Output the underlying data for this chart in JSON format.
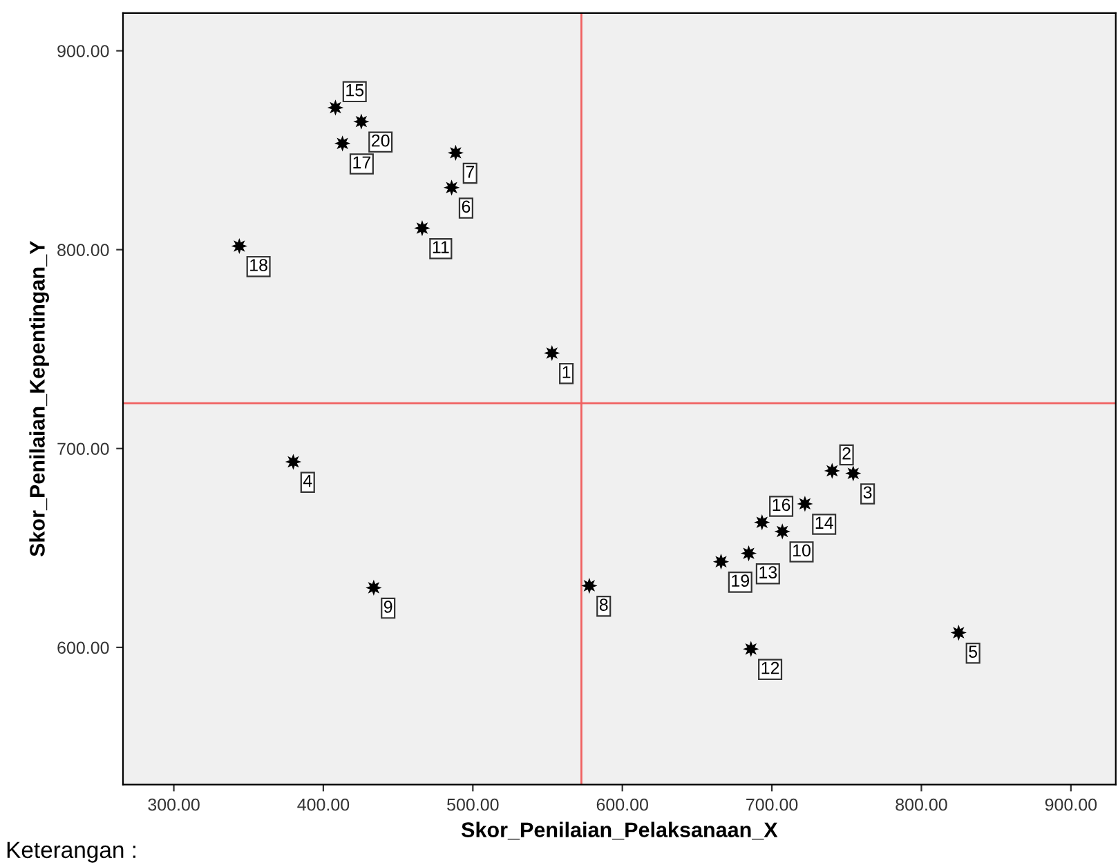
{
  "chart_data": {
    "type": "scatter",
    "xlabel": "Skor_Penilaian_Pelaksanaan_X",
    "ylabel": "Skor_Penilaian_Kepentingan_Y",
    "series": [
      {
        "color": "#000000",
        "x": [
          552.9,
          740.3,
          754.4,
          379.9,
          824.9,
          485.8,
          488.5,
          577.9,
          433.7,
          707.0,
          466.1,
          686.0,
          684.5,
          722.1,
          408.1,
          693.4,
          412.8,
          343.8,
          666.0,
          425.4
        ],
        "values": [
          748,
          688.8,
          687.5,
          693.3,
          607.4,
          831.2,
          848.7,
          631,
          630,
          658.3,
          810.8,
          599.2,
          647.3,
          672.2,
          871.4,
          662.9,
          853.4,
          801.8,
          643.1,
          864.4
        ]
      }
    ],
    "marker": "star",
    "xlim": [
      266,
      930
    ],
    "ylim": [
      531,
      919
    ],
    "xticks": [
      {
        "value": 300,
        "label": "300.00"
      },
      {
        "value": 400,
        "label": "400.00"
      },
      {
        "value": 500,
        "label": "500.00"
      },
      {
        "value": 600,
        "label": "600.00"
      },
      {
        "value": 700,
        "label": "700.00"
      },
      {
        "value": 800,
        "label": "800.00"
      },
      {
        "value": 900,
        "label": "900.00"
      }
    ],
    "yticks": [
      {
        "value": 600,
        "label": "600.00"
      },
      {
        "value": 700,
        "label": "700.00"
      },
      {
        "value": 800,
        "label": "800.00"
      },
      {
        "value": 900,
        "label": "900.00"
      }
    ],
    "ref_lines": [
      {
        "axis": "x",
        "value": 572.6,
        "color": "#f06060"
      },
      {
        "axis": "y",
        "value": 722.8,
        "color": "#f06060"
      }
    ],
    "grid": false,
    "legend": false,
    "annotations": [
      {
        "text": "1",
        "x": 552.9,
        "y": 748
      },
      {
        "text": "2",
        "x": 740.3,
        "y": 688.8
      },
      {
        "text": "3",
        "x": 754.4,
        "y": 687.5
      },
      {
        "text": "4",
        "x": 379.9,
        "y": 693.3
      },
      {
        "text": "5",
        "x": 824.9,
        "y": 607.4
      },
      {
        "text": "6",
        "x": 485.8,
        "y": 831.2
      },
      {
        "text": "7",
        "x": 488.5,
        "y": 848.7
      },
      {
        "text": "8",
        "x": 577.9,
        "y": 631
      },
      {
        "text": "9",
        "x": 433.7,
        "y": 630
      },
      {
        "text": "10",
        "x": 707.0,
        "y": 658.3
      },
      {
        "text": "11",
        "x": 466.1,
        "y": 810.8
      },
      {
        "text": "12",
        "x": 686.0,
        "y": 599.2
      },
      {
        "text": "13",
        "x": 684.5,
        "y": 647.3
      },
      {
        "text": "14",
        "x": 722.1,
        "y": 672.2
      },
      {
        "text": "15",
        "x": 408.1,
        "y": 871.4
      },
      {
        "text": "16",
        "x": 693.4,
        "y": 662.9
      },
      {
        "text": "17",
        "x": 412.8,
        "y": 853.4
      },
      {
        "text": "18",
        "x": 343.8,
        "y": 801.8
      },
      {
        "text": "19",
        "x": 666.0,
        "y": 643.1
      },
      {
        "text": "20",
        "x": 425.4,
        "y": 864.4
      },
      "Keterangan :"
    ]
  }
}
